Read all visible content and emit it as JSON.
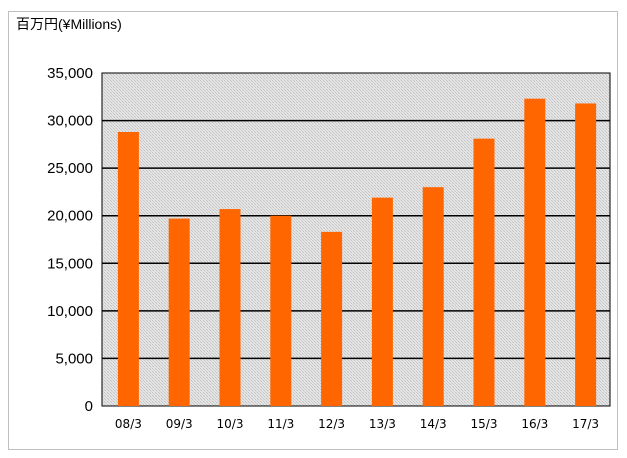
{
  "chart_data": {
    "type": "bar",
    "unit_label": "百万円(¥Millions)",
    "categories": [
      "08/3",
      "09/3",
      "10/3",
      "11/3",
      "12/3",
      "13/3",
      "14/3",
      "15/3",
      "16/3",
      "17/3"
    ],
    "values": [
      28800,
      19700,
      20700,
      20000,
      18300,
      21900,
      23000,
      28100,
      32300,
      31800
    ],
    "y_ticks": [
      "0",
      "5,000",
      "10,000",
      "15,000",
      "20,000",
      "25,000",
      "30,000",
      "35,000"
    ],
    "ylim": [
      0,
      35000
    ],
    "grid": true,
    "bar_color": "#ff6600",
    "plot_background": "hatched-gray"
  }
}
